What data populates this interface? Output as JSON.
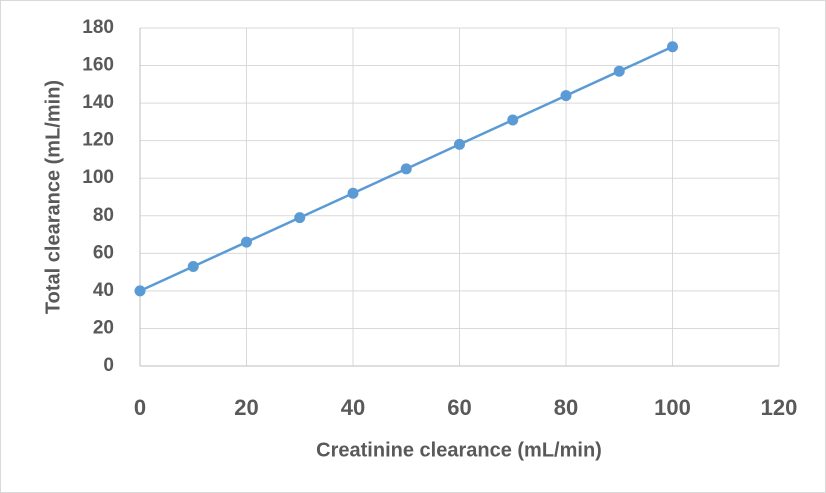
{
  "chart_data": {
    "type": "line",
    "xlabel": "Creatinine clearance (mL/min)",
    "ylabel": "Total clearance (mL/min)",
    "x": [
      0,
      10,
      20,
      30,
      40,
      50,
      60,
      70,
      80,
      90,
      100
    ],
    "values": [
      40,
      53,
      66,
      79,
      92,
      105,
      118,
      131,
      144,
      157,
      170
    ],
    "color": "#5b9bd5",
    "xlim": [
      0,
      120
    ],
    "xticks": [
      0,
      20,
      40,
      60,
      80,
      100,
      120
    ],
    "ylim": [
      0,
      180
    ],
    "yticks": [
      0,
      20,
      40,
      60,
      80,
      100,
      120,
      140,
      160,
      180
    ],
    "grid": true
  }
}
